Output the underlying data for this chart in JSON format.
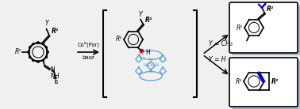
{
  "bg_color": "#f0f0f0",
  "arrow_color": "#000000",
  "cobalt_color": "#5b9bd5",
  "blue_bond_color": "#0000cc",
  "radical_color": "#cc0000",
  "box_bg": "#ffffff",
  "box_shadow": "#b0b8c8",
  "text_reagent": "Coᴵᴵᴵ(Por)",
  "text_base": "base",
  "text_Y_H": "Y = H",
  "text_Y_CH3": "Y = CH₃",
  "label_Y": "Y",
  "label_R1": "R¹",
  "label_R2": "R²",
  "figsize": [
    3.78,
    1.38
  ],
  "dpi": 100
}
